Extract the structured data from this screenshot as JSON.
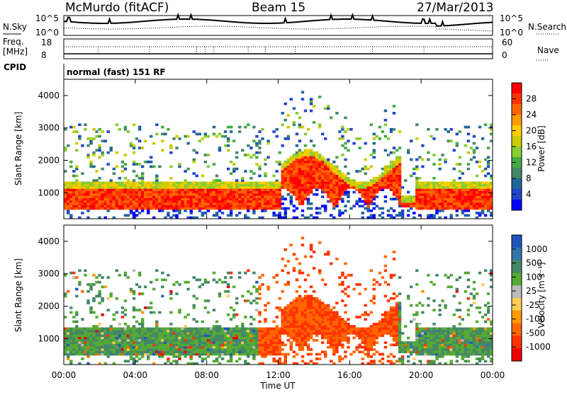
{
  "header": {
    "station": "McMurdo (fitACF)",
    "beam": "Beam 15",
    "date": "27/Mar/2013"
  },
  "noise_panel": {
    "left_label": "N.Sky",
    "right_label": "N.Search",
    "left_ticks": [
      "10^5",
      "10^0"
    ],
    "right_ticks": [
      "10^5",
      "10^0"
    ]
  },
  "freq_panel": {
    "left_label_1": "Freq.",
    "left_label_2": "[MHz]",
    "left_ticks": [
      "18",
      "8"
    ],
    "right_ticks": [
      "60",
      "0"
    ],
    "right_label": "Nave"
  },
  "cpid_panel": {
    "label": "CPID",
    "text": "normal (fast) 151 RF"
  },
  "chart_data": [
    {
      "type": "heatmap",
      "name": "Power",
      "ylabel": "Slant Range [km]",
      "yticks": [
        "4000",
        "3000",
        "2000",
        "1000"
      ],
      "ylim": [
        200,
        4500
      ],
      "colorbar": {
        "label": "Power [dB]",
        "ticks": [
          "28",
          "24",
          "20",
          "16",
          "12",
          "8",
          "4"
        ],
        "colors": [
          "#ff0000",
          "#ff3300",
          "#ff6600",
          "#ff9900",
          "#ffcc00",
          "#cccc00",
          "#88cc33",
          "#44aa44",
          "#448866",
          "#226699",
          "#2244cc",
          "#0000ff"
        ]
      }
    },
    {
      "type": "heatmap",
      "name": "Velocity",
      "ylabel": "Slant Range [km]",
      "yticks": [
        "4000",
        "3000",
        "2000",
        "1000"
      ],
      "ylim": [
        200,
        4500
      ],
      "colorbar": {
        "label": "Velocity [m s⁻¹]",
        "ticks": [
          "1000",
          "500",
          "100",
          "25",
          "-25",
          "-100",
          "-500",
          "-1000"
        ],
        "colors": [
          "#2255bb",
          "#3377aa",
          "#448866",
          "#55aa33",
          "#bbbbbb",
          "#ffcc55",
          "#ff9900",
          "#ff6600",
          "#ff3300",
          "#ee0000"
        ]
      },
      "xlabel": "Time UT",
      "xticks": [
        "00:00",
        "04:00",
        "08:00",
        "12:00",
        "16:00",
        "20:00",
        "00:00"
      ]
    }
  ]
}
